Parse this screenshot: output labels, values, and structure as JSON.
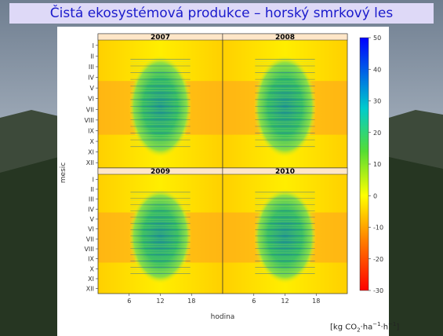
{
  "title": "Čistá ekosystémová produkce – horský smrkový les",
  "units_text": "[kg  CO",
  "units_sub": "2",
  "units_mid1": "·ha",
  "units_sup1": "−1",
  "units_mid2": "·h",
  "units_sup2": "−1",
  "units_end": "]",
  "chart_data": {
    "type": "heatmap",
    "xlabel": "hodina",
    "ylabel": "mesic",
    "panels": [
      {
        "label": "2007",
        "position": "top-left"
      },
      {
        "label": "2008",
        "position": "top-right"
      },
      {
        "label": "2009",
        "position": "bottom-left"
      },
      {
        "label": "2010",
        "position": "bottom-right"
      }
    ],
    "x_ticks": [
      6,
      12,
      18
    ],
    "x_range": [
      0,
      24
    ],
    "y_ticks": [
      "I",
      "II",
      "III",
      "IV",
      "V",
      "VI",
      "VII",
      "VIII",
      "IX",
      "X",
      "XI",
      "XII"
    ],
    "colorbar": {
      "range": [
        -30,
        50
      ],
      "ticks": [
        50,
        40,
        30,
        20,
        10,
        0,
        -10,
        -20,
        -30
      ],
      "colors": [
        "#ff0000",
        "#ff8000",
        "#ffff00",
        "#00cc44",
        "#00cccc",
        "#0000ff"
      ]
    },
    "grid": false
  }
}
